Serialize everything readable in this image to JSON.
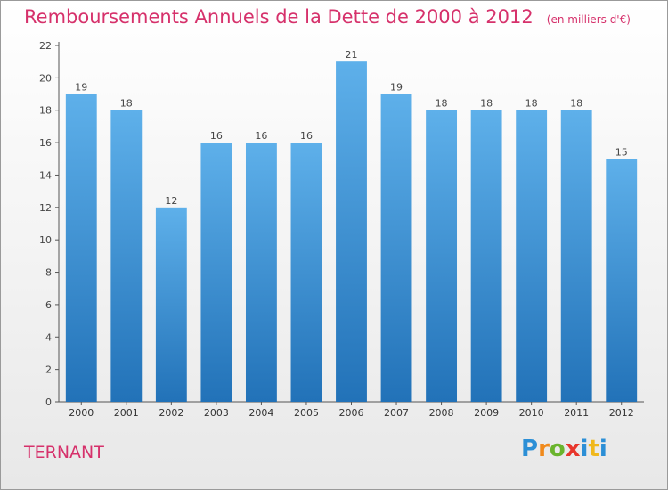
{
  "chart_data": {
    "type": "bar",
    "title": "Remboursements Annuels de la Dette de 2000 à 2012",
    "subtitle": "(en milliers d'€)",
    "categories": [
      "2000",
      "2001",
      "2002",
      "2003",
      "2004",
      "2005",
      "2006",
      "2007",
      "2008",
      "2009",
      "2010",
      "2011",
      "2012"
    ],
    "values": [
      19,
      18,
      12,
      16,
      16,
      16,
      21,
      19,
      18,
      18,
      18,
      18,
      15
    ],
    "ylim": [
      0,
      22
    ],
    "yticks": [
      0,
      2,
      4,
      6,
      8,
      10,
      12,
      14,
      16,
      18,
      20,
      22
    ],
    "grid": false,
    "bar_color_top": "#5eb0ea",
    "bar_color_bottom": "#2272b8",
    "axis_color": "#555555"
  },
  "commune": "TERNANT",
  "logo": {
    "letters": [
      "P",
      "r",
      "o",
      "x",
      "i",
      "t",
      "i"
    ],
    "colors": [
      "#2c8fd6",
      "#f08a1c",
      "#6ab42d",
      "#e8362c",
      "#2c8fd6",
      "#f0b81c",
      "#2c8fd6"
    ]
  },
  "colors": {
    "title": "#d6316b"
  }
}
